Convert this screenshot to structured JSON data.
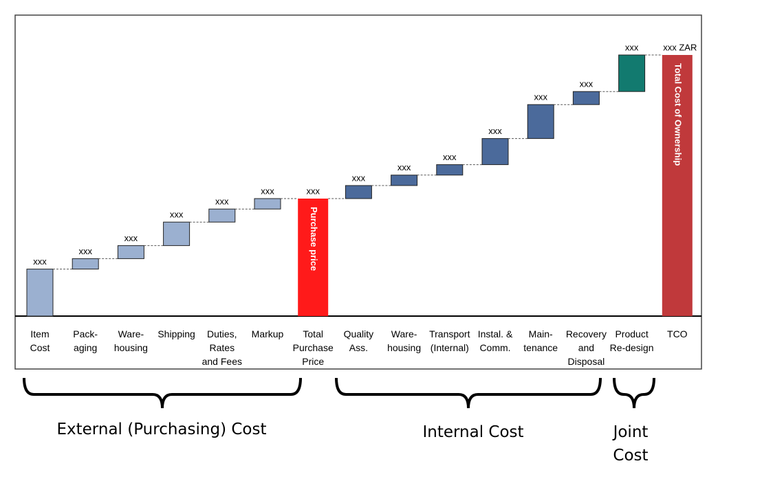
{
  "chart_data": {
    "type": "waterfall",
    "categories": [
      "Item\nCost",
      "Pack-\naging",
      "Ware-\nhousing",
      "Shipping",
      "Duties,\nRates\nand Fees",
      "Markup",
      "Total\nPurchase\nPrice",
      "Quality\nAss.",
      "Ware-\nhousing",
      "Transport\n(Internal)",
      "Instal. &\nComm.",
      "Main-\ntenance",
      "Recovery\nand\nDisposal",
      "Product\nRe-design",
      "TCO"
    ],
    "values": [
      18,
      4,
      5,
      9,
      5,
      4,
      45,
      5,
      4,
      4,
      10,
      13,
      5,
      14,
      100
    ],
    "value_labels": [
      "xxx",
      "xxx",
      "xxx",
      "xxx",
      "xxx",
      "xxx",
      "xxx",
      "xxx",
      "xxx",
      "xxx",
      "xxx",
      "xxx",
      "xxx",
      "xxx",
      "xxx ZAR"
    ],
    "measure": [
      "relative",
      "relative",
      "relative",
      "relative",
      "relative",
      "relative",
      "total",
      "relative",
      "relative",
      "relative",
      "relative",
      "relative",
      "relative",
      "relative",
      "total"
    ],
    "colors": [
      "#9bb0d0",
      "#9bb0d0",
      "#9bb0d0",
      "#9bb0d0",
      "#9bb0d0",
      "#9bb0d0",
      "#ff1a1a",
      "#4b6a9b",
      "#4b6a9b",
      "#4b6a9b",
      "#4b6a9b",
      "#4b6a9b",
      "#4b6a9b",
      "#127a6f",
      "#c0393b"
    ],
    "bar_texts": [
      null,
      null,
      null,
      null,
      null,
      null,
      "Purchase price",
      null,
      null,
      null,
      null,
      null,
      null,
      null,
      "Total Cost of Ownership"
    ],
    "groups": [
      "External (Purchasing) Cost",
      "Internal Cost",
      "Joint\nCost"
    ]
  }
}
